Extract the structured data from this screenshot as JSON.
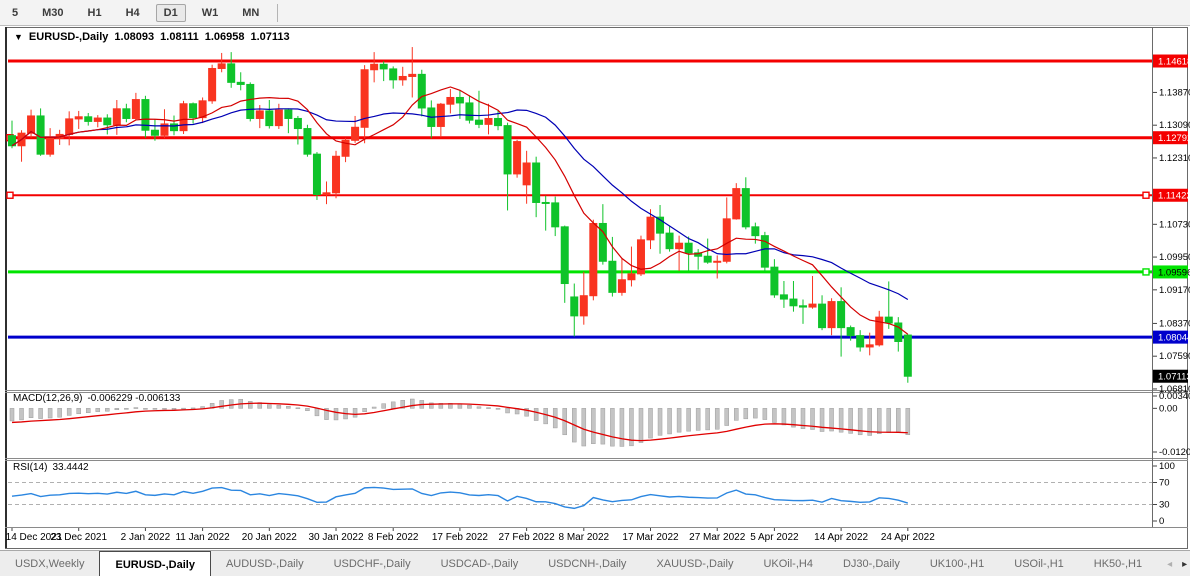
{
  "toolbar": {
    "timeframes": [
      "5",
      "M30",
      "H1",
      "H4",
      "D1",
      "W1",
      "MN"
    ],
    "active": "D1"
  },
  "icons": {
    "title_dropdown": "▼",
    "tab_scroll_left": "◂",
    "tab_scroll_right": "▸"
  },
  "chart": {
    "title": "EURUSD-,Daily",
    "ohlc": {
      "open": "1.08093",
      "high": "1.08111",
      "low": "1.06958",
      "close": "1.07113"
    },
    "price_range": [
      1.06785,
      1.15404
    ],
    "y_ticks": [
      "1.13870",
      "1.13090",
      "1.12310",
      "1.10730",
      "1.09950",
      "1.09170",
      "1.08370",
      "1.07590",
      "1.06810"
    ],
    "hlines": [
      {
        "price": 1.14618,
        "label": "1.14618",
        "color": "#f40000",
        "text_color": "#ffffff",
        "width": 3,
        "handles": []
      },
      {
        "price": 1.12792,
        "label": "1.12792",
        "color": "#f40000",
        "text_color": "#ffffff",
        "width": 3,
        "handles": [
          "left"
        ]
      },
      {
        "price": 1.11422,
        "label": "1.11422",
        "color": "#f40000",
        "text_color": "#ffffff",
        "width": 2,
        "handles": [
          "left",
          "right"
        ]
      },
      {
        "price": 1.09596,
        "label": "1.09596",
        "color": "#00e400",
        "text_color": "#000000",
        "width": 3,
        "handles": [
          "right"
        ]
      },
      {
        "price": 1.08044,
        "label": "1.08044",
        "color": "#0000cc",
        "text_color": "#ffffff",
        "width": 3,
        "handles": []
      }
    ],
    "current_price": {
      "label": "1.07113",
      "bg": "#000000",
      "text_color": "#ffffff"
    },
    "colors": {
      "up_candle": "#f93420",
      "down_candle": "#0fc32a",
      "ma_fast": "#d40000",
      "ma_slow": "#0000b4"
    },
    "ma_fast_period": 10,
    "ma_slow_period": 20
  },
  "chart_data": {
    "type": "candlestick",
    "symbol": "EURUSD-",
    "timeframe": "Daily",
    "note": "red = bullish close>open, green = bearish close<open; values [open,high,low,close]",
    "x_ticks": [
      {
        "i": 0,
        "label": "14 Dec 2021"
      },
      {
        "i": 7,
        "label": "23 Dec 2021"
      },
      {
        "i": 14,
        "label": "2 Jan 2022"
      },
      {
        "i": 20,
        "label": "11 Jan 2022"
      },
      {
        "i": 27,
        "label": "20 Jan 2022"
      },
      {
        "i": 34,
        "label": "30 Jan 2022"
      },
      {
        "i": 40,
        "label": "8 Feb 2022"
      },
      {
        "i": 47,
        "label": "17 Feb 2022"
      },
      {
        "i": 54,
        "label": "27 Feb 2022"
      },
      {
        "i": 60,
        "label": "8 Mar 2022"
      },
      {
        "i": 67,
        "label": "17 Mar 2022"
      },
      {
        "i": 74,
        "label": "27 Mar 2022"
      },
      {
        "i": 80,
        "label": "5 Apr 2022"
      },
      {
        "i": 87,
        "label": "14 Apr 2022"
      },
      {
        "i": 94,
        "label": "24 Apr 2022"
      }
    ],
    "candles": [
      [
        1.1284,
        1.132,
        1.1254,
        1.126
      ],
      [
        1.126,
        1.1297,
        1.1222,
        1.129
      ],
      [
        1.129,
        1.1346,
        1.1279,
        1.1331
      ],
      [
        1.1331,
        1.1349,
        1.1236,
        1.124
      ],
      [
        1.124,
        1.1302,
        1.1234,
        1.1278
      ],
      [
        1.1278,
        1.1298,
        1.1262,
        1.1287
      ],
      [
        1.1287,
        1.1342,
        1.1261,
        1.1324
      ],
      [
        1.1324,
        1.1343,
        1.13,
        1.1329
      ],
      [
        1.1329,
        1.1338,
        1.1308,
        1.1318
      ],
      [
        1.1318,
        1.1333,
        1.1304,
        1.1326
      ],
      [
        1.1326,
        1.1335,
        1.1287,
        1.131
      ],
      [
        1.131,
        1.1369,
        1.1286,
        1.1348
      ],
      [
        1.1348,
        1.136,
        1.1316,
        1.1325
      ],
      [
        1.1325,
        1.1386,
        1.1321,
        1.137
      ],
      [
        1.137,
        1.1379,
        1.1279,
        1.1297
      ],
      [
        1.1297,
        1.1323,
        1.1272,
        1.1285
      ],
      [
        1.1285,
        1.1347,
        1.1278,
        1.1312
      ],
      [
        1.1312,
        1.1332,
        1.1285,
        1.1296
      ],
      [
        1.1296,
        1.1367,
        1.1288,
        1.136
      ],
      [
        1.136,
        1.1363,
        1.1313,
        1.1327
      ],
      [
        1.1327,
        1.1375,
        1.1314,
        1.1367
      ],
      [
        1.1367,
        1.1453,
        1.136,
        1.1444
      ],
      [
        1.1444,
        1.1481,
        1.1435,
        1.1455
      ],
      [
        1.1455,
        1.1483,
        1.1398,
        1.1411
      ],
      [
        1.1411,
        1.1435,
        1.1392,
        1.1406
      ],
      [
        1.1406,
        1.1411,
        1.1318,
        1.1325
      ],
      [
        1.1325,
        1.1357,
        1.1302,
        1.1343
      ],
      [
        1.1343,
        1.1369,
        1.1301,
        1.1308
      ],
      [
        1.1308,
        1.136,
        1.13,
        1.1345
      ],
      [
        1.1345,
        1.1349,
        1.129,
        1.1325
      ],
      [
        1.1325,
        1.1331,
        1.1263,
        1.1301
      ],
      [
        1.1301,
        1.131,
        1.1234,
        1.124
      ],
      [
        1.124,
        1.1245,
        1.1131,
        1.1144
      ],
      [
        1.1144,
        1.1175,
        1.1121,
        1.1148
      ],
      [
        1.1148,
        1.1248,
        1.1135,
        1.1235
      ],
      [
        1.1235,
        1.1279,
        1.1221,
        1.1273
      ],
      [
        1.1273,
        1.1331,
        1.1267,
        1.1304
      ],
      [
        1.1304,
        1.1452,
        1.1266,
        1.1441
      ],
      [
        1.1441,
        1.1483,
        1.1411,
        1.1454
      ],
      [
        1.1454,
        1.1461,
        1.1414,
        1.1443
      ],
      [
        1.1443,
        1.1449,
        1.1396,
        1.1417
      ],
      [
        1.1417,
        1.1448,
        1.1403,
        1.1425
      ],
      [
        1.1425,
        1.1495,
        1.1375,
        1.143
      ],
      [
        1.143,
        1.1441,
        1.133,
        1.135
      ],
      [
        1.135,
        1.1368,
        1.1278,
        1.1306
      ],
      [
        1.1306,
        1.1362,
        1.128,
        1.1359
      ],
      [
        1.1359,
        1.1395,
        1.1337,
        1.1375
      ],
      [
        1.1375,
        1.1393,
        1.1324,
        1.1362
      ],
      [
        1.1362,
        1.138,
        1.1313,
        1.1321
      ],
      [
        1.1321,
        1.1391,
        1.1302,
        1.1311
      ],
      [
        1.1311,
        1.136,
        1.1287,
        1.1325
      ],
      [
        1.1325,
        1.1343,
        1.1297,
        1.1308
      ],
      [
        1.1308,
        1.1315,
        1.1106,
        1.1193
      ],
      [
        1.1193,
        1.1274,
        1.1184,
        1.127
      ],
      [
        1.1167,
        1.1248,
        1.1122,
        1.1219
      ],
      [
        1.1219,
        1.1234,
        1.109,
        1.1125
      ],
      [
        1.1125,
        1.1141,
        1.1058,
        1.1124
      ],
      [
        1.1124,
        1.1139,
        1.1045,
        1.1067
      ],
      [
        1.1067,
        1.107,
        1.0886,
        1.0932
      ],
      [
        1.09,
        1.0932,
        1.0806,
        1.0855
      ],
      [
        1.0855,
        1.096,
        1.0834,
        1.0903
      ],
      [
        1.0903,
        1.1084,
        1.0892,
        1.1075
      ],
      [
        1.1075,
        1.1121,
        1.0977,
        1.0985
      ],
      [
        1.0985,
        1.1043,
        1.0901,
        1.0911
      ],
      [
        1.0911,
        1.0991,
        1.0903,
        1.0941
      ],
      [
        1.0941,
        1.102,
        1.0925,
        1.0955
      ],
      [
        1.0955,
        1.1046,
        1.095,
        1.1036
      ],
      [
        1.1036,
        1.1109,
        1.1014,
        1.109
      ],
      [
        1.109,
        1.1119,
        1.1003,
        1.1052
      ],
      [
        1.1052,
        1.1069,
        1.1008,
        1.1015
      ],
      [
        1.1015,
        1.1046,
        1.0962,
        1.1028
      ],
      [
        1.1028,
        1.1044,
        1.0963,
        1.1005
      ],
      [
        1.1005,
        1.1014,
        1.0965,
        1.0997
      ],
      [
        1.0997,
        1.1039,
        1.0979,
        1.0983
      ],
      [
        1.0983,
        1.0999,
        1.0944,
        1.0985
      ],
      [
        1.0985,
        1.1137,
        1.098,
        1.1086
      ],
      [
        1.1086,
        1.1171,
        1.1084,
        1.1158
      ],
      [
        1.1158,
        1.1185,
        1.1061,
        1.1067
      ],
      [
        1.1067,
        1.1077,
        1.1027,
        1.1046
      ],
      [
        1.1046,
        1.1055,
        1.096,
        1.0971
      ],
      [
        1.0971,
        1.099,
        1.0898,
        1.0905
      ],
      [
        1.0905,
        1.0938,
        1.0874,
        1.0895
      ],
      [
        1.0895,
        1.0938,
        1.0865,
        1.0879
      ],
      [
        1.0879,
        1.0894,
        1.0836,
        1.0876
      ],
      [
        1.0876,
        1.095,
        1.0872,
        1.0883
      ],
      [
        1.0883,
        1.0904,
        1.0821,
        1.0827
      ],
      [
        1.0827,
        1.0897,
        1.0809,
        1.0889
      ],
      [
        1.0889,
        1.0923,
        1.0758,
        1.0827
      ],
      [
        1.0827,
        1.0832,
        1.0796,
        1.0808
      ],
      [
        1.0808,
        1.0821,
        1.077,
        1.0781
      ],
      [
        1.0781,
        1.0815,
        1.0761,
        1.0786
      ],
      [
        1.0786,
        1.0867,
        1.0782,
        1.0852
      ],
      [
        1.0852,
        1.0937,
        1.0824,
        1.0838
      ],
      [
        1.0838,
        1.0852,
        1.077,
        1.0794
      ],
      [
        1.08093,
        1.08111,
        1.06958,
        1.07113
      ]
    ]
  },
  "macd": {
    "label": "MACD(12,26,9)",
    "values": "-0.006229 -0.006133",
    "params": [
      12,
      26,
      9
    ],
    "scale_max": "0.003408",
    "scale_zero": "0.00",
    "scale_min": "-0.01205",
    "range": [
      -0.01205,
      0.003408
    ],
    "seed_fast": 1.129,
    "seed_slow": 1.1325,
    "seed_signal": -0.004,
    "hist_color": "#c4c4c4",
    "hist_stroke": "#9e9e9e",
    "signal_color": "#e00000"
  },
  "rsi": {
    "label": "RSI(14)",
    "value": "33.4442",
    "period": 14,
    "levels": [
      70,
      30
    ],
    "scale": [
      "100",
      "70",
      "30",
      "0"
    ],
    "seed_gain": 0.0028,
    "seed_loss": 0.0034,
    "line_color": "#2b86e0",
    "level_color": "#b0b0b0"
  },
  "tabs": {
    "items": [
      "USDX,Weekly",
      "EURUSD-,Daily",
      "AUDUSD-,Daily",
      "USDCHF-,Daily",
      "USDCAD-,Daily",
      "USDCNH-,Daily",
      "XAUUSD-,Daily",
      "UKOil-,H4",
      "DJ30-,Daily",
      "UK100-,H1",
      "USOil-,H1",
      "HK50-,H1"
    ],
    "active": "EURUSD-,Daily"
  }
}
